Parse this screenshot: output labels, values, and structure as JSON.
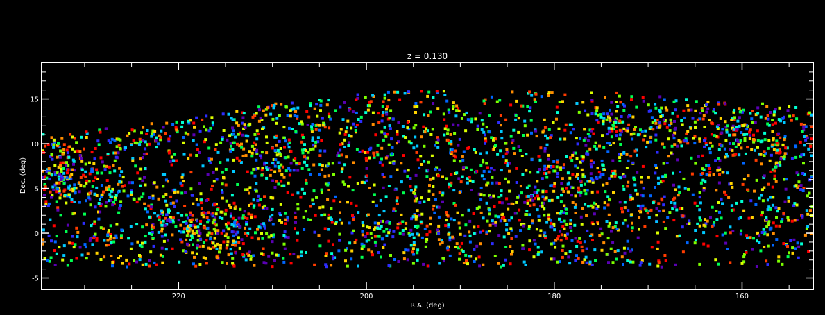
{
  "chart_data": {
    "type": "scatter",
    "title": "z = 0.130",
    "xlabel": "R.A. (deg)",
    "ylabel": "Dec. (deg)",
    "xlim": [
      234.5,
      152.5
    ],
    "ylim": [
      -6.2,
      19
    ],
    "x_reversed": true,
    "x_ticks": [
      220,
      200,
      180,
      160
    ],
    "y_ticks": [
      -5,
      0,
      5,
      10,
      15
    ],
    "x_tick_labels": [
      "220",
      "200",
      "180",
      "160"
    ],
    "y_tick_labels": [
      "-5",
      "0",
      "5",
      "10",
      "15"
    ],
    "background": "#000000",
    "axis_color": "#ffffff",
    "grid": false,
    "legend": "none",
    "marker": "square",
    "color_encoding": "rainbow colormap (purple→blue→cyan→green→yellow→orange→red) per galaxy",
    "footprint": {
      "ra_range": [
        152.5,
        234.5
      ],
      "dec_min": -3.8,
      "dec_max_profile": [
        [
          234.5,
          11.2
        ],
        [
          226,
          11.8
        ],
        [
          220,
          12.7
        ],
        [
          214,
          13.8
        ],
        [
          209,
          14.7
        ],
        [
          204,
          15.2
        ],
        [
          199,
          15.7
        ],
        [
          194,
          16.1
        ],
        [
          188,
          16.1
        ],
        [
          182,
          15.8
        ],
        [
          174,
          15.8
        ],
        [
          168,
          15.3
        ],
        [
          160,
          14.7
        ],
        [
          152.5,
          14.0
        ]
      ]
    },
    "concentrations": [
      {
        "ra": 181,
        "dec": 3.2,
        "spread_ra": 4.0,
        "spread_dec": 3.0
      },
      {
        "ra": 208.5,
        "dec": 9.5,
        "spread_ra": 3.2,
        "spread_dec": 3.0
      },
      {
        "ra": 233,
        "dec": 7.0,
        "spread_ra": 1.8,
        "spread_dec": 2.6
      },
      {
        "ra": 216,
        "dec": 0.8,
        "spread_ra": 3.5,
        "spread_dec": 1.6
      },
      {
        "ra": 164,
        "dec": 12.0,
        "spread_ra": 5.5,
        "spread_dec": 2.0
      }
    ],
    "approx_point_count": 3400
  }
}
